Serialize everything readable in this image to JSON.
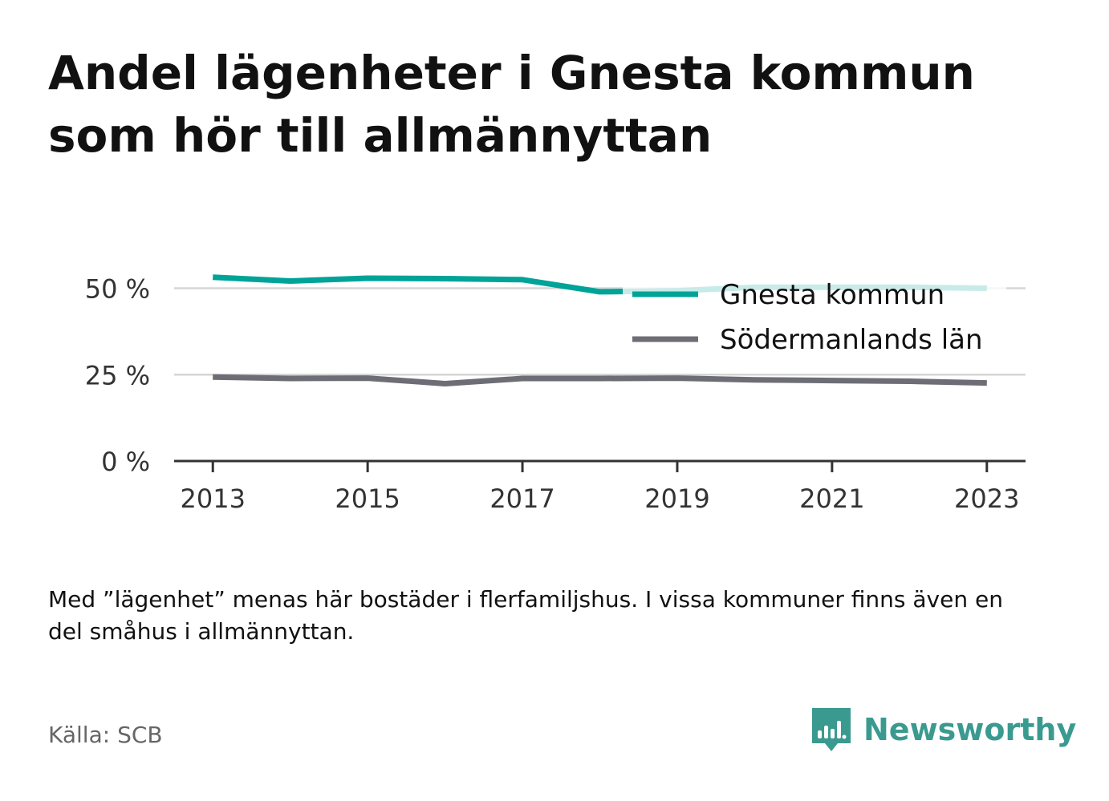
{
  "title": "Andel lägenheter i Gnesta kommun som hör till allmännyttan",
  "note": "Med ”lägenhet” menas här bostäder i flerfamiljshus. I vissa kommuner finns även en del småhus i allmännyttan.",
  "source": "Källa: SCB",
  "brand": {
    "name": "Newsworthy",
    "icon": "newsworthy-logo-icon"
  },
  "colors": {
    "gnesta": "#00a398",
    "sodermanland": "#6d6d75",
    "grid": "#d6d6d6",
    "axis": "#333333",
    "brand": "#3a9a90"
  },
  "chart_data": {
    "type": "line",
    "x": [
      2013,
      2014,
      2015,
      2016,
      2017,
      2018,
      2019,
      2020,
      2021,
      2022,
      2023
    ],
    "x_ticks": [
      2013,
      2015,
      2017,
      2019,
      2021,
      2023
    ],
    "y_ticks": [
      0,
      25,
      50
    ],
    "y_tick_labels": [
      "0 %",
      "25 %",
      "50 %"
    ],
    "ylim": [
      0,
      55
    ],
    "xlim": [
      2012.5,
      2023.5
    ],
    "grid": true,
    "legend_position": "top-right",
    "series": [
      {
        "name": "Gnesta kommun",
        "color_key": "gnesta",
        "values": [
          53.2,
          52.1,
          52.9,
          52.8,
          52.5,
          49.0,
          49.3,
          50.3,
          50.3,
          50.3,
          50.0
        ]
      },
      {
        "name": "Södermanlands län",
        "color_key": "sodermanland",
        "values": [
          24.3,
          23.9,
          24.0,
          22.4,
          23.9,
          23.9,
          24.0,
          23.5,
          23.3,
          23.1,
          22.6
        ]
      }
    ]
  }
}
